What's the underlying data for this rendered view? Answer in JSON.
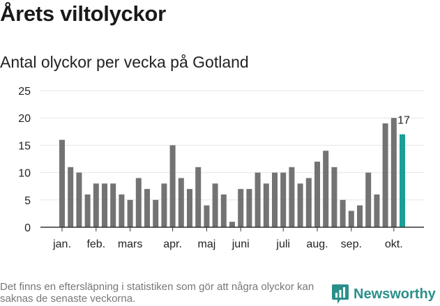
{
  "header": {
    "title": "Årets viltolyckor",
    "subtitle": "Antal olyckor per vecka på Gotland"
  },
  "footer": {
    "note": "Det finns en eftersläpning i statistiken som gör att några olyckor kan saknas de senaste veckorna.",
    "brand": "Newsworthy"
  },
  "colors": {
    "bar": "#737373",
    "highlight": "#1a9e96",
    "grid": "#e6e6e6",
    "brand": "#2a8f8a"
  },
  "icons": {
    "brand_logo": "bar-chart-bubble-icon"
  },
  "chart_data": {
    "type": "bar",
    "title": "Antal olyckor per vecka på Gotland",
    "xlabel": "",
    "ylabel": "",
    "ylim": [
      0,
      25
    ],
    "yticks": [
      0,
      5,
      10,
      15,
      20,
      25
    ],
    "grid": true,
    "weeks": [
      1,
      2,
      3,
      4,
      5,
      6,
      7,
      8,
      9,
      10,
      11,
      12,
      13,
      14,
      15,
      16,
      17,
      18,
      19,
      20,
      21,
      22,
      23,
      24,
      25,
      26,
      27,
      28,
      29,
      30,
      31,
      32,
      33,
      34,
      35,
      36,
      37,
      38,
      39,
      40,
      41
    ],
    "values": [
      16,
      11,
      10,
      6,
      8,
      8,
      8,
      6,
      5,
      9,
      7,
      5,
      8,
      15,
      9,
      7,
      11,
      4,
      8,
      6,
      1,
      7,
      7,
      10,
      8,
      10,
      10,
      11,
      8,
      9,
      12,
      14,
      11,
      5,
      3,
      4,
      10,
      6,
      19,
      20,
      17
    ],
    "highlight_index": 40,
    "highlight_label": "17",
    "month_labels": [
      {
        "label": "jan.",
        "week": 1
      },
      {
        "label": "feb.",
        "week": 5
      },
      {
        "label": "mars",
        "week": 9
      },
      {
        "label": "apr.",
        "week": 14
      },
      {
        "label": "maj",
        "week": 18
      },
      {
        "label": "juni",
        "week": 22
      },
      {
        "label": "juli",
        "week": 27
      },
      {
        "label": "aug.",
        "week": 31
      },
      {
        "label": "sep.",
        "week": 35
      },
      {
        "label": "okt.",
        "week": 40
      }
    ]
  }
}
